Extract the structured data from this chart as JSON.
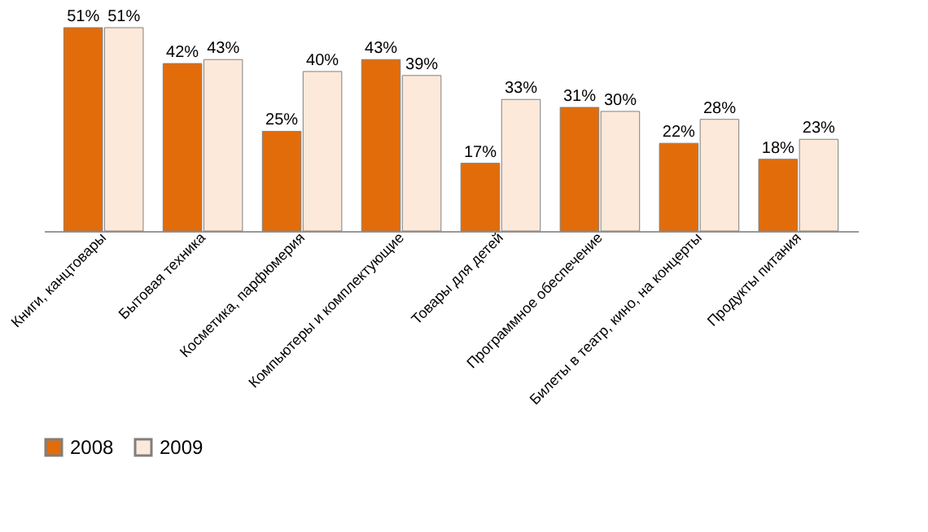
{
  "chart_data": {
    "type": "bar",
    "categories": [
      "Книги, канцтовары",
      "Бытовая техника",
      "Косметика, парфюмерия",
      "Компьютеры и комплектующие",
      "Товары для детей",
      "Программное обеспечение",
      "Билеты в театр, кино, на концерты",
      "Продукты питания"
    ],
    "series": [
      {
        "name": "2008",
        "color": "#e36c0a",
        "values": [
          51,
          42,
          25,
          43,
          17,
          31,
          22,
          18
        ],
        "value_labels": [
          "51%",
          "42%",
          "25%",
          "43%",
          "17%",
          "31%",
          "22%",
          "18%"
        ]
      },
      {
        "name": "2009",
        "color": "#fde9d9",
        "values": [
          51,
          43,
          40,
          39,
          33,
          30,
          28,
          23
        ],
        "value_labels": [
          "51%",
          "43%",
          "40%",
          "39%",
          "33%",
          "30%",
          "28%",
          "23%"
        ]
      }
    ],
    "tick_labels": "x",
    "grid": false,
    "legend": "bottom"
  }
}
